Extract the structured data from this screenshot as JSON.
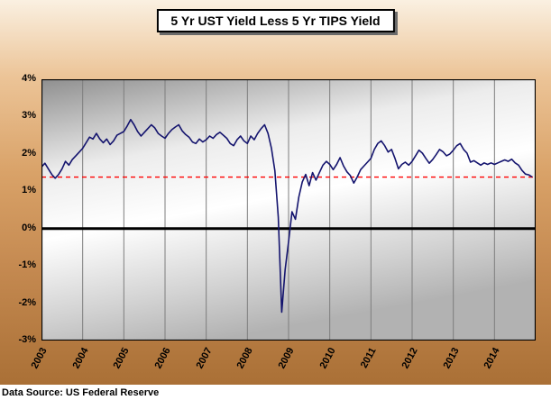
{
  "title": "5 Yr UST Yield Less 5 Yr TIPS Yield",
  "source": "Data Source:  US Federal Reserve",
  "colors": {
    "page_gradient_top": "#faf0e1",
    "page_gradient_bottom": "#aa7036",
    "plot_gradient": [
      "#8f8f8f",
      "#ececec",
      "#ffffff",
      "#b2b2b2"
    ],
    "grid": "#7d7d7d",
    "zero_line": "#000000",
    "reference_line": "#ff0000",
    "series_line": "#14146e"
  },
  "chart_data": {
    "type": "line",
    "title": "5 Yr UST Yield Less 5 Yr TIPS Yield",
    "xlabel": "",
    "ylabel": "",
    "xlim": [
      2003,
      2015
    ],
    "ylim": [
      -3,
      4
    ],
    "grid": "vertical-yearly",
    "legend": "none",
    "x_ticks": [
      2003,
      2004,
      2005,
      2006,
      2007,
      2008,
      2009,
      2010,
      2011,
      2012,
      2013,
      2014
    ],
    "x_tick_labels": [
      "2003",
      "2004",
      "2005",
      "2006",
      "2007",
      "2008",
      "2009",
      "2010",
      "2011",
      "2012",
      "2013",
      "2014"
    ],
    "y_ticks": [
      4,
      3,
      2,
      1,
      0,
      -1,
      -2,
      -3
    ],
    "y_tick_labels": [
      "4%",
      "3%",
      "2%",
      "1%",
      "0%",
      "-1%",
      "-2%",
      "-3%"
    ],
    "zero_line": {
      "value": 0,
      "color": "#000000",
      "width": 3
    },
    "reference_line": {
      "value": 1.38,
      "color": "#ff0000",
      "style": "dashed"
    },
    "colors": {
      "grid": "#7d7d7d"
    },
    "series": [
      {
        "name": "5 Yr UST Yield Less 5 Yr TIPS Yield",
        "color": "#14146e",
        "frequency": "monthly",
        "x_start": 2003.0,
        "x_step": 0.0833333,
        "y": [
          1.65,
          1.75,
          1.6,
          1.45,
          1.35,
          1.45,
          1.6,
          1.8,
          1.7,
          1.85,
          1.95,
          2.05,
          2.15,
          2.3,
          2.45,
          2.4,
          2.55,
          2.4,
          2.3,
          2.4,
          2.25,
          2.35,
          2.5,
          2.55,
          2.6,
          2.75,
          2.92,
          2.78,
          2.6,
          2.48,
          2.58,
          2.68,
          2.78,
          2.7,
          2.55,
          2.48,
          2.42,
          2.55,
          2.65,
          2.72,
          2.78,
          2.62,
          2.52,
          2.45,
          2.32,
          2.28,
          2.4,
          2.32,
          2.38,
          2.48,
          2.42,
          2.52,
          2.58,
          2.5,
          2.42,
          2.28,
          2.22,
          2.38,
          2.48,
          2.35,
          2.28,
          2.48,
          2.38,
          2.55,
          2.68,
          2.78,
          2.55,
          2.15,
          1.55,
          0.3,
          -2.24,
          -1.1,
          -0.35,
          0.45,
          0.25,
          0.85,
          1.25,
          1.45,
          1.15,
          1.5,
          1.3,
          1.5,
          1.7,
          1.8,
          1.72,
          1.58,
          1.72,
          1.9,
          1.68,
          1.52,
          1.42,
          1.22,
          1.38,
          1.58,
          1.68,
          1.78,
          1.88,
          2.12,
          2.28,
          2.35,
          2.22,
          2.05,
          2.12,
          1.88,
          1.6,
          1.72,
          1.78,
          1.7,
          1.8,
          1.95,
          2.1,
          2.02,
          1.88,
          1.75,
          1.85,
          1.98,
          2.12,
          2.06,
          1.95,
          2.0,
          2.1,
          2.22,
          2.28,
          2.12,
          2.02,
          1.78,
          1.82,
          1.76,
          1.7,
          1.76,
          1.72,
          1.76,
          1.72,
          1.76,
          1.8,
          1.84,
          1.8,
          1.86,
          1.76,
          1.7,
          1.56,
          1.46,
          1.44,
          1.38
        ]
      }
    ]
  }
}
